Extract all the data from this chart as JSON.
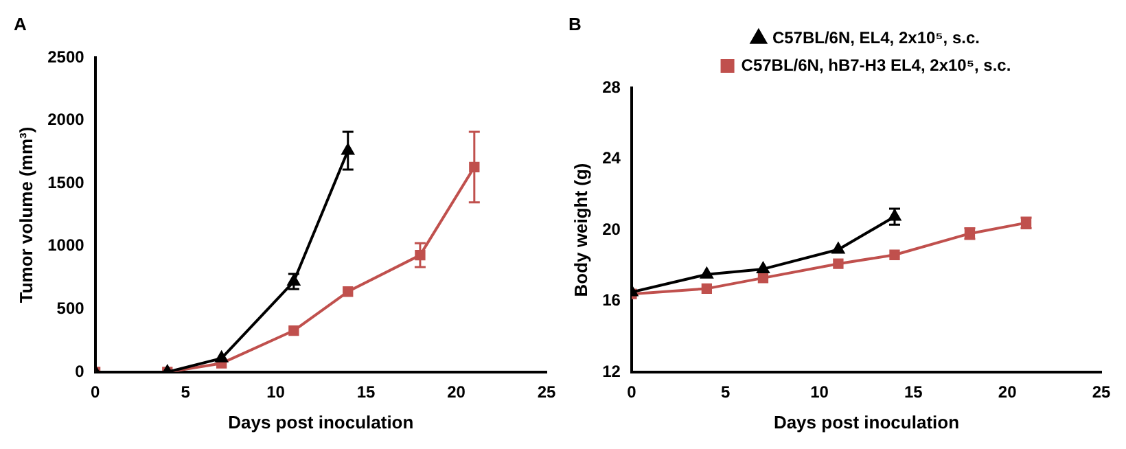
{
  "chart_data": [
    {
      "type": "line",
      "xlabel": "Days post inoculation",
      "ylabel": "Tumor volume (mm³)",
      "annotations": [
        "A"
      ],
      "xlim": [
        0,
        25
      ],
      "xticks": [
        0,
        5,
        10,
        15,
        20,
        25
      ],
      "ylim": [
        0,
        2500
      ],
      "yticks": [
        0,
        500,
        1000,
        1500,
        2000,
        2500
      ],
      "grid": false,
      "legend": false,
      "line_style": "solid",
      "series": [
        {
          "color": "#000000",
          "marker": "triangle",
          "x": [
            0,
            4,
            7,
            11,
            14
          ],
          "values": [
            0,
            0,
            110,
            720,
            1760
          ],
          "errors": [
            null,
            null,
            null,
            60,
            150
          ]
        },
        {
          "color": "#c0504d",
          "marker": "square",
          "x": [
            0,
            4,
            7,
            11,
            14,
            18,
            21
          ],
          "values": [
            0,
            0,
            70,
            330,
            640,
            930,
            1630
          ],
          "errors": [
            null,
            null,
            null,
            null,
            null,
            95,
            280
          ]
        }
      ]
    },
    {
      "type": "line",
      "xlabel": "Days post inoculation",
      "ylabel": "Body weight (g)",
      "annotations": [
        "B"
      ],
      "xlim": [
        0,
        25
      ],
      "xticks": [
        0,
        5,
        10,
        15,
        20,
        25
      ],
      "ylim": [
        12,
        28
      ],
      "yticks": [
        12,
        16,
        20,
        24,
        28
      ],
      "grid": false,
      "legend": "top",
      "line_style": "solid",
      "series": [
        {
          "name": "C57BL/6N, EL4, 2x10⁵, s.c.",
          "color": "#000000",
          "marker": "triangle",
          "x": [
            0,
            4,
            7,
            11,
            14
          ],
          "values": [
            16.5,
            17.5,
            17.8,
            18.9,
            20.75
          ],
          "errors": [
            null,
            null,
            null,
            null,
            0.45
          ]
        },
        {
          "name": "C57BL/6N, hB7-H3 EL4, 2x10⁵, s.c.",
          "color": "#c0504d",
          "marker": "square",
          "x": [
            0,
            4,
            7,
            11,
            14,
            18,
            21
          ],
          "values": [
            16.4,
            16.7,
            17.3,
            18.1,
            18.6,
            19.8,
            20.4
          ],
          "errors": [
            null,
            null,
            null,
            null,
            null,
            0.3,
            0.3
          ]
        }
      ]
    }
  ]
}
